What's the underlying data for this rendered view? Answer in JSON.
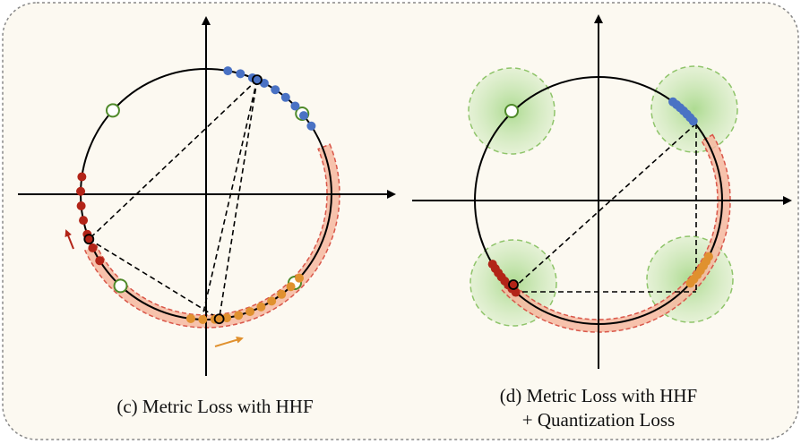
{
  "captions": {
    "left": "(c) Metric Loss with HHF",
    "right": [
      "(d) Metric Loss with HHF",
      "+ Quantization Loss"
    ]
  }
}
